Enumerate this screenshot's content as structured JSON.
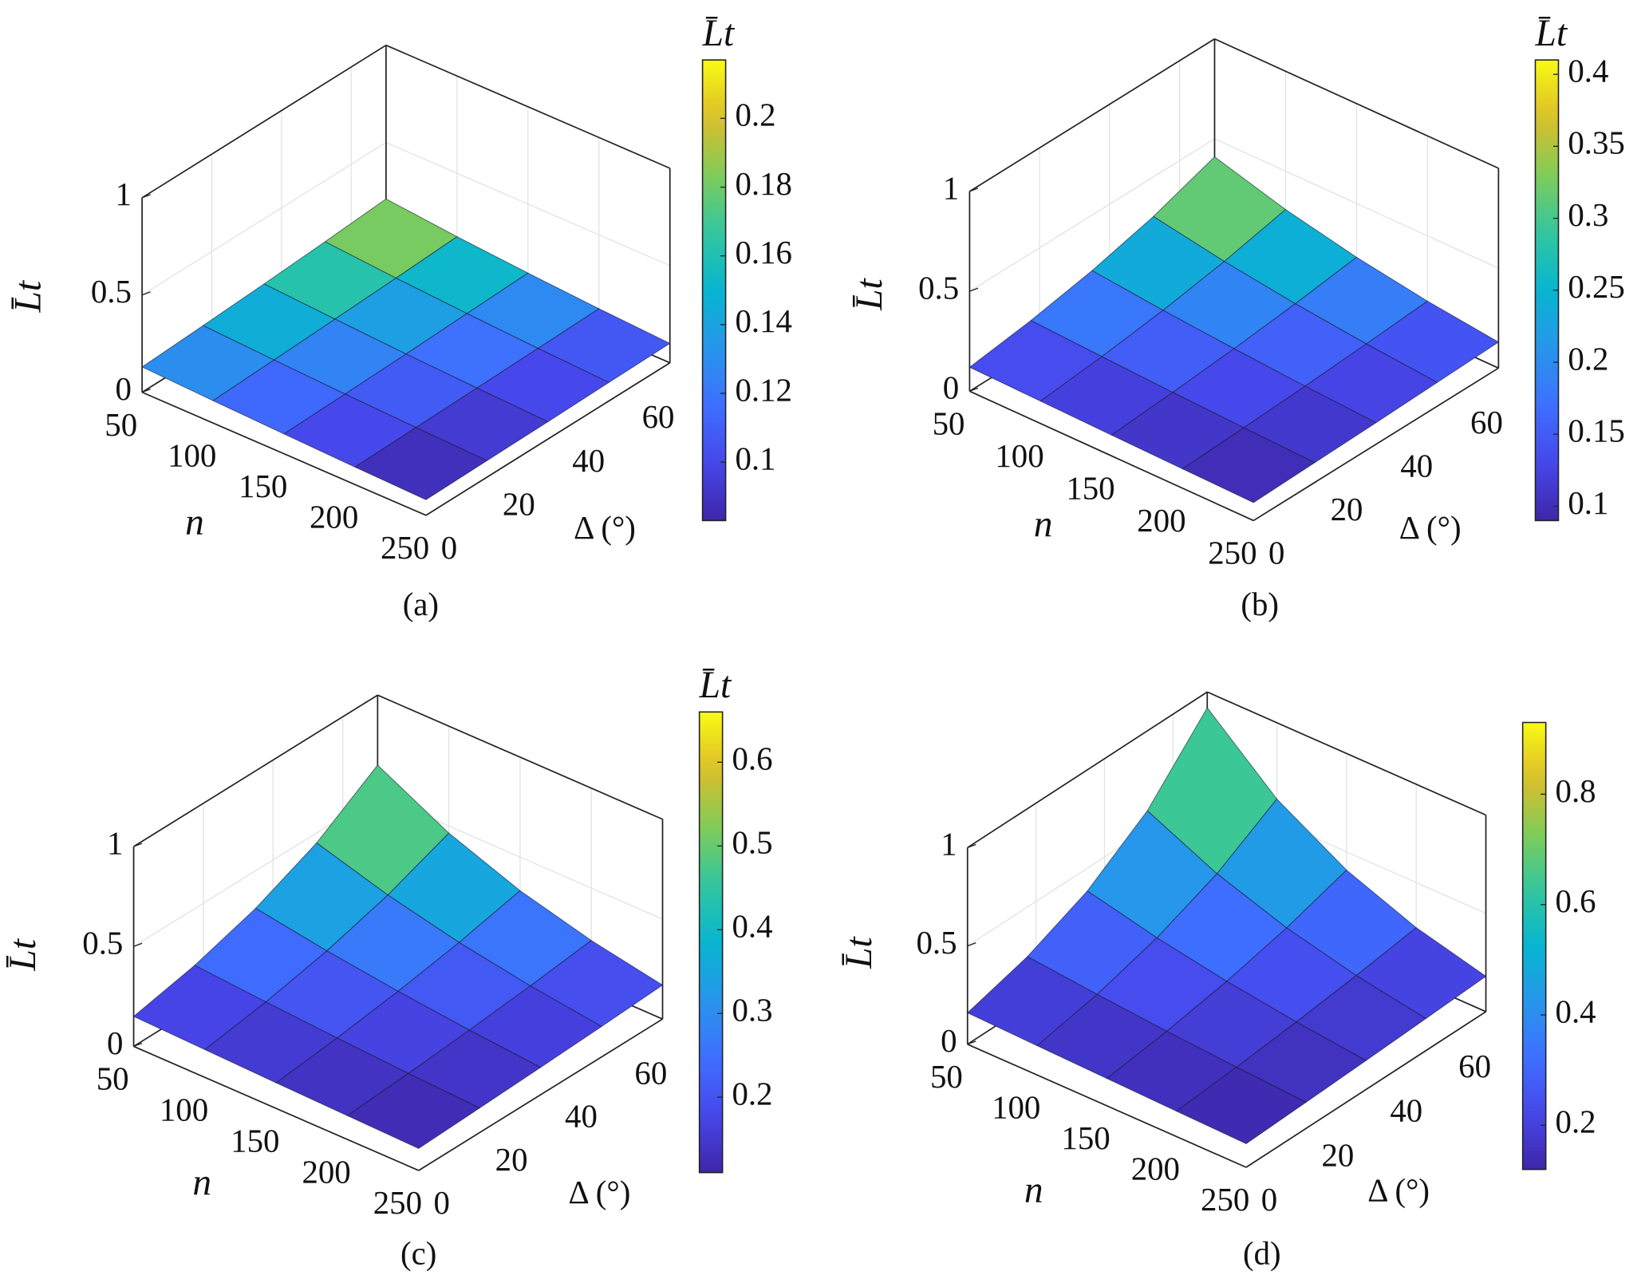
{
  "chart_data": [
    {
      "type": "surface",
      "caption": "(a)",
      "zlabel": "L̄t",
      "xlabel": "n",
      "ylabel": "Δ (°)",
      "colorbar_label": "L̄t",
      "x": [
        50,
        100,
        150,
        200,
        250
      ],
      "y": [
        0,
        17.5,
        35,
        52.5,
        70
      ],
      "z": [
        [
          0.13,
          0.147,
          0.165,
          0.186,
          0.21
        ],
        [
          0.115,
          0.128,
          0.142,
          0.157,
          0.174
        ],
        [
          0.102,
          0.111,
          0.121,
          0.133,
          0.145
        ],
        [
          0.09,
          0.097,
          0.104,
          0.112,
          0.12
        ],
        [
          0.08,
          0.085,
          0.089,
          0.095,
          0.1
        ]
      ],
      "xlim": [
        50,
        250
      ],
      "ylim": [
        0,
        70
      ],
      "zlim": [
        0,
        1
      ],
      "xticks": [
        50,
        100,
        150,
        200,
        250
      ],
      "yticks": [
        0,
        20,
        40,
        60
      ],
      "zticks": [
        0,
        0.5,
        1
      ],
      "clim": [
        0.083,
        0.217
      ],
      "cticks": [
        0.1,
        0.12,
        0.14,
        0.16,
        0.18,
        0.2
      ],
      "colormap": "parula",
      "grid": true
    },
    {
      "type": "surface",
      "caption": "(b)",
      "zlabel": "L̄t",
      "xlabel": "n",
      "ylabel": "Δ (°)",
      "colorbar_label": "L̄t",
      "x": [
        50,
        100,
        150,
        200,
        250
      ],
      "y": [
        0,
        17.5,
        35,
        52.5,
        70
      ],
      "z": [
        [
          0.12,
          0.163,
          0.222,
          0.302,
          0.41
        ],
        [
          0.112,
          0.144,
          0.185,
          0.239,
          0.308
        ],
        [
          0.104,
          0.127,
          0.155,
          0.189,
          0.231
        ],
        [
          0.097,
          0.112,
          0.129,
          0.15,
          0.173
        ],
        [
          0.09,
          0.099,
          0.108,
          0.119,
          0.13
        ]
      ],
      "xlim": [
        50,
        250
      ],
      "ylim": [
        0,
        70
      ],
      "zlim": [
        0,
        1
      ],
      "xticks": [
        50,
        100,
        150,
        200,
        250
      ],
      "yticks": [
        0,
        20,
        40,
        60
      ],
      "zticks": [
        0,
        0.5,
        1
      ],
      "clim": [
        0.09,
        0.41
      ],
      "cticks": [
        0.1,
        0.15,
        0.2,
        0.25,
        0.3,
        0.35,
        0.4
      ],
      "colormap": "parula",
      "grid": true
    },
    {
      "type": "surface",
      "caption": "(c)",
      "zlabel": "L̄t",
      "xlabel": "n",
      "ylabel": "Δ (°)",
      "colorbar_label": "L̄t",
      "x": [
        50,
        100,
        150,
        200,
        250
      ],
      "y": [
        0,
        17.5,
        35,
        52.5,
        70
      ],
      "z": [
        [
          0.15,
          0.216,
          0.312,
          0.45,
          0.65
        ],
        [
          0.139,
          0.188,
          0.254,
          0.344,
          0.465
        ],
        [
          0.128,
          0.163,
          0.207,
          0.262,
          0.332
        ],
        [
          0.119,
          0.141,
          0.168,
          0.2,
          0.238
        ],
        [
          0.11,
          0.123,
          0.137,
          0.152,
          0.17
        ]
      ],
      "xlim": [
        50,
        250
      ],
      "ylim": [
        0,
        70
      ],
      "zlim": [
        0,
        1
      ],
      "xticks": [
        50,
        100,
        150,
        200,
        250
      ],
      "yticks": [
        0,
        20,
        40,
        60
      ],
      "zticks": [
        0,
        0.5,
        1
      ],
      "clim": [
        0.11,
        0.66
      ],
      "cticks": [
        0.2,
        0.3,
        0.4,
        0.5,
        0.6
      ],
      "colormap": "parula",
      "grid": true
    },
    {
      "type": "surface",
      "caption": "(d)",
      "zlabel": "L̄t",
      "xlabel": "n",
      "ylabel": "Δ (°)",
      "x": [
        50,
        100,
        150,
        200,
        250
      ],
      "y": [
        0,
        17.5,
        35,
        52.5,
        70
      ],
      "z": [
        [
          0.16,
          0.248,
          0.384,
          0.594,
          0.92
        ],
        [
          0.149,
          0.212,
          0.302,
          0.43,
          0.612
        ],
        [
          0.139,
          0.181,
          0.237,
          0.311,
          0.407
        ],
        [
          0.129,
          0.155,
          0.187,
          0.225,
          0.271
        ],
        [
          0.12,
          0.133,
          0.147,
          0.163,
          0.18
        ]
      ],
      "xlim": [
        50,
        250
      ],
      "ylim": [
        0,
        70
      ],
      "zlim": [
        0,
        1
      ],
      "xticks": [
        50,
        100,
        150,
        200,
        250
      ],
      "yticks": [
        0,
        20,
        40,
        60
      ],
      "zticks": [
        0,
        0.5,
        1
      ],
      "clim": [
        0.12,
        0.93
      ],
      "cticks": [
        0.2,
        0.4,
        0.6,
        0.8
      ],
      "colormap": "parula",
      "grid": true
    }
  ]
}
